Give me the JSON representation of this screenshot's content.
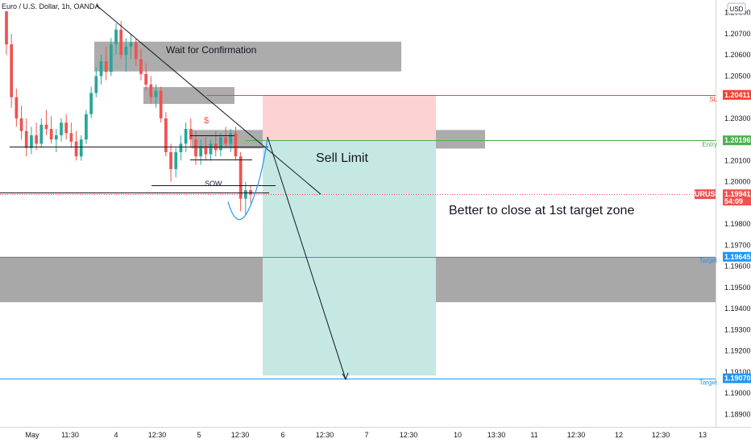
{
  "header": {
    "title": "Euro / U.S. Dollar, 1h, OANDA",
    "currency": "USD"
  },
  "colors": {
    "up": "#26a69a",
    "down": "#ef5350",
    "blue": "#2196f3",
    "red_line": "#f44336",
    "green_line": "#4caf50",
    "zone_gray": "#9e9e9e",
    "loss_fill": "#fdd2d2",
    "profit_fill": "#c6e8e3",
    "axis_text": "#131722"
  },
  "chart_data": {
    "type": "candlestick",
    "title": "Euro / U.S. Dollar, 1h, OANDA",
    "xlabel": "",
    "ylabel": "",
    "ylim": [
      1.1884,
      1.2086
    ],
    "y_ticks": [
      "1.20800",
      "1.20700",
      "1.20600",
      "1.20500",
      "1.20400",
      "1.20300",
      "1.20200",
      "1.20100",
      "1.20000",
      "1.19900",
      "1.19800",
      "1.19700",
      "1.19600",
      "1.19500",
      "1.19400",
      "1.19300",
      "1.19200",
      "1.19100",
      "1.19000",
      "1.18900"
    ],
    "x_ticks": [
      "May",
      "11:30",
      "4",
      "12:30",
      "5",
      "12:30",
      "6",
      "12:30",
      "7",
      "12:30",
      "10",
      "13:30",
      "11",
      "12:30",
      "12",
      "12:30",
      "13"
    ],
    "grid": false,
    "candles": [
      {
        "o": 1.2082,
        "h": 1.2085,
        "l": 1.206,
        "c": 1.2065
      },
      {
        "o": 1.2065,
        "h": 1.207,
        "l": 1.2035,
        "c": 1.204
      },
      {
        "o": 1.204,
        "h": 1.2044,
        "l": 1.2026,
        "c": 1.203
      },
      {
        "o": 1.203,
        "h": 1.2036,
        "l": 1.202,
        "c": 1.2024
      },
      {
        "o": 1.2024,
        "h": 1.203,
        "l": 1.2012,
        "c": 1.2016
      },
      {
        "o": 1.2016,
        "h": 1.2026,
        "l": 1.2013,
        "c": 1.2022
      },
      {
        "o": 1.2022,
        "h": 1.2028,
        "l": 1.2015,
        "c": 1.2018
      },
      {
        "o": 1.2018,
        "h": 1.203,
        "l": 1.2016,
        "c": 1.2027
      },
      {
        "o": 1.2027,
        "h": 1.2034,
        "l": 1.2022,
        "c": 1.2025
      },
      {
        "o": 1.2025,
        "h": 1.2031,
        "l": 1.2018,
        "c": 1.202
      },
      {
        "o": 1.202,
        "h": 1.2025,
        "l": 1.2014,
        "c": 1.2022
      },
      {
        "o": 1.2022,
        "h": 1.203,
        "l": 1.2019,
        "c": 1.2028
      },
      {
        "o": 1.2028,
        "h": 1.2032,
        "l": 1.202,
        "c": 1.2023
      },
      {
        "o": 1.2023,
        "h": 1.2028,
        "l": 1.2016,
        "c": 1.2019
      },
      {
        "o": 1.2019,
        "h": 1.2024,
        "l": 1.201,
        "c": 1.2012
      },
      {
        "o": 1.2012,
        "h": 1.2022,
        "l": 1.201,
        "c": 1.202
      },
      {
        "o": 1.202,
        "h": 1.2034,
        "l": 1.2018,
        "c": 1.2032
      },
      {
        "o": 1.2032,
        "h": 1.2045,
        "l": 1.203,
        "c": 1.2042
      },
      {
        "o": 1.2042,
        "h": 1.2054,
        "l": 1.204,
        "c": 1.205
      },
      {
        "o": 1.205,
        "h": 1.206,
        "l": 1.2046,
        "c": 1.2057
      },
      {
        "o": 1.2057,
        "h": 1.2064,
        "l": 1.2048,
        "c": 1.2052
      },
      {
        "o": 1.2052,
        "h": 1.2068,
        "l": 1.205,
        "c": 1.2065
      },
      {
        "o": 1.2065,
        "h": 1.2075,
        "l": 1.206,
        "c": 1.2072
      },
      {
        "o": 1.2072,
        "h": 1.2076,
        "l": 1.2058,
        "c": 1.206
      },
      {
        "o": 1.206,
        "h": 1.2068,
        "l": 1.2052,
        "c": 1.2064
      },
      {
        "o": 1.2064,
        "h": 1.207,
        "l": 1.2058,
        "c": 1.2066
      },
      {
        "o": 1.2066,
        "h": 1.2068,
        "l": 1.2055,
        "c": 1.2058
      },
      {
        "o": 1.2058,
        "h": 1.2063,
        "l": 1.2048,
        "c": 1.2051
      },
      {
        "o": 1.2051,
        "h": 1.2056,
        "l": 1.2043,
        "c": 1.2046
      },
      {
        "o": 1.2046,
        "h": 1.205,
        "l": 1.2037,
        "c": 1.204
      },
      {
        "o": 1.204,
        "h": 1.2046,
        "l": 1.2035,
        "c": 1.2043
      },
      {
        "o": 1.2043,
        "h": 1.2045,
        "l": 1.2028,
        "c": 1.203
      },
      {
        "o": 1.203,
        "h": 1.2033,
        "l": 1.2012,
        "c": 1.2014
      },
      {
        "o": 1.2014,
        "h": 1.2018,
        "l": 1.2,
        "c": 1.2006
      },
      {
        "o": 1.2006,
        "h": 1.2016,
        "l": 1.2002,
        "c": 1.2014
      },
      {
        "o": 1.2014,
        "h": 1.2022,
        "l": 1.201,
        "c": 1.2018
      },
      {
        "o": 1.2018,
        "h": 1.2028,
        "l": 1.2014,
        "c": 1.2025
      },
      {
        "o": 1.2025,
        "h": 1.203,
        "l": 1.2016,
        "c": 1.202
      },
      {
        "o": 1.202,
        "h": 1.2024,
        "l": 1.2008,
        "c": 1.2012
      },
      {
        "o": 1.2012,
        "h": 1.202,
        "l": 1.2008,
        "c": 1.2017
      },
      {
        "o": 1.2017,
        "h": 1.2021,
        "l": 1.201,
        "c": 1.2013
      },
      {
        "o": 1.2013,
        "h": 1.202,
        "l": 1.201,
        "c": 1.2018
      },
      {
        "o": 1.2018,
        "h": 1.2024,
        "l": 1.2012,
        "c": 1.2015
      },
      {
        "o": 1.2015,
        "h": 1.2023,
        "l": 1.2012,
        "c": 1.2021
      },
      {
        "o": 1.2021,
        "h": 1.2026,
        "l": 1.2016,
        "c": 1.2018
      },
      {
        "o": 1.2018,
        "h": 1.2025,
        "l": 1.2014,
        "c": 1.2023
      },
      {
        "o": 1.2023,
        "h": 1.2026,
        "l": 1.201,
        "c": 1.2012
      },
      {
        "o": 1.2012,
        "h": 1.2014,
        "l": 1.1986,
        "c": 1.1992
      },
      {
        "o": 1.1992,
        "h": 1.2,
        "l": 1.1984,
        "c": 1.1996
      },
      {
        "o": 1.1996,
        "h": 1.1998,
        "l": 1.199,
        "c": 1.1994
      }
    ],
    "zones": [
      {
        "name": "confirmation-zone",
        "x0": 117,
        "x1": 498,
        "top": 1.20663,
        "bottom": 1.20522,
        "color": "#9e9e9e",
        "opacity": 0.85
      },
      {
        "name": "upper-resistance-zone",
        "x0": 178,
        "x1": 291,
        "top": 1.20448,
        "bottom": 1.20368,
        "color": "#9e9e9e",
        "opacity": 0.85
      },
      {
        "name": "entry-zone",
        "x0": 238,
        "x1": 602,
        "top": 1.20245,
        "bottom": 1.20157,
        "color": "#9e9e9e",
        "opacity": 0.85
      },
      {
        "name": "target-zone",
        "x0": 0,
        "x1": 888,
        "top": 1.19645,
        "bottom": 1.1943,
        "color": "#9e9e9e",
        "opacity": 0.9
      },
      {
        "name": "stop-loss-area",
        "x0": 326,
        "x1": 541,
        "top": 1.20411,
        "bottom": 1.20196,
        "color": "#fdd2d2",
        "opacity": 1
      },
      {
        "name": "profit-area",
        "x0": 326,
        "x1": 541,
        "top": 1.20196,
        "bottom": 1.19083,
        "color": "#c6e8e3",
        "opacity": 1
      }
    ],
    "price_lines": [
      {
        "name": "sl-line",
        "price": 1.20411,
        "x0": 256,
        "color": "#f44336",
        "label": "1.20411",
        "tag": "SL"
      },
      {
        "name": "entry-line",
        "price": 1.20196,
        "x0": 305,
        "color": "#4caf50",
        "label": "1.20196",
        "tag": "Entry"
      },
      {
        "name": "current-price-line",
        "price": 1.19941,
        "x0": 0,
        "color": "#ef5350",
        "label": "EURUSD",
        "label2": "1.19941",
        "label3": "54:09"
      },
      {
        "name": "target-line-1",
        "price": 1.19645,
        "x0": 0,
        "color": "#2196f3",
        "label": "1.19645",
        "tag": "Target"
      },
      {
        "name": "target-line-2",
        "price": 1.1907,
        "x0": 0,
        "color": "#2196f3",
        "label": "1.19070",
        "tag": "Target"
      }
    ],
    "annotations": [
      {
        "name": "wait-confirmation-label",
        "text": "Wait for Confirmation"
      },
      {
        "name": "sell-limit-label",
        "text": "Sell Limit"
      },
      {
        "name": "close-advice-label",
        "text": "Better to close at 1st target zone"
      },
      {
        "name": "sow-label",
        "text": "SOW"
      },
      {
        "name": "dollar-marker",
        "text": "$"
      }
    ]
  }
}
